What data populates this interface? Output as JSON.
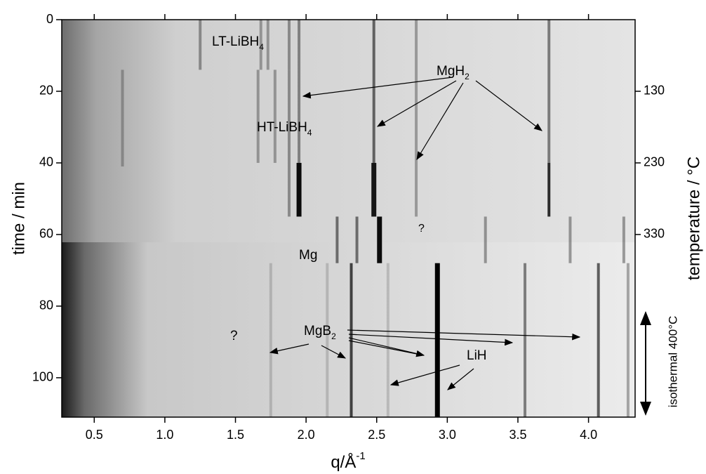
{
  "chart_data": {
    "type": "diffraction-map",
    "xlabel": {
      "text": "q/Å",
      "sup": "-1"
    },
    "ylabel": "time / min",
    "y2label": "temperature / °C",
    "xlim": [
      0.27,
      4.33
    ],
    "xticks": [
      0.5,
      {
        "value": 1.0,
        "label": "1.0"
      },
      1.5,
      {
        "value": 2.0,
        "label": "2.0"
      },
      2.5,
      {
        "value": 3.0,
        "label": "3.0"
      },
      3.5,
      {
        "value": 4.0,
        "label": "4.0"
      }
    ],
    "ylim": [
      0,
      111
    ],
    "yticks": [
      0,
      20,
      40,
      60,
      80,
      100
    ],
    "y2lim": [
      30,
      585
    ],
    "y2ticks": [
      130,
      230,
      330
    ],
    "isothermal": {
      "text": "isothermal 400°C",
      "range": [
        74,
        111
      ]
    },
    "reflections": [
      {
        "q": 1.25,
        "t": [
          0,
          14
        ],
        "level": 0.35
      },
      {
        "q": 1.68,
        "t": [
          0,
          14
        ],
        "level": 0.3
      },
      {
        "q": 1.73,
        "t": [
          0,
          14
        ],
        "level": 0.3
      },
      {
        "q": 1.88,
        "t": [
          0,
          14
        ],
        "level": 0.35
      },
      {
        "q": 0.7,
        "t": [
          14,
          41
        ],
        "level": 0.25
      },
      {
        "q": 1.66,
        "t": [
          14,
          40
        ],
        "level": 0.3
      },
      {
        "q": 1.78,
        "t": [
          14,
          40
        ],
        "level": 0.3
      },
      {
        "q": 1.88,
        "t": [
          14,
          55
        ],
        "level": 0.35
      },
      {
        "q": 1.95,
        "t": [
          0,
          40
        ],
        "level": 0.4
      },
      {
        "q": 1.95,
        "t": [
          40,
          55
        ],
        "level": 0.95
      },
      {
        "q": 2.48,
        "t": [
          0,
          40
        ],
        "level": 0.55
      },
      {
        "q": 2.48,
        "t": [
          40,
          55
        ],
        "level": 0.9
      },
      {
        "q": 2.78,
        "t": [
          0,
          55
        ],
        "level": 0.3
      },
      {
        "q": 3.72,
        "t": [
          0,
          40
        ],
        "level": 0.45
      },
      {
        "q": 3.72,
        "t": [
          40,
          55
        ],
        "level": 0.8
      },
      {
        "q": 2.22,
        "t": [
          55,
          68
        ],
        "level": 0.5
      },
      {
        "q": 2.36,
        "t": [
          55,
          68
        ],
        "level": 0.5
      },
      {
        "q": 2.52,
        "t": [
          55,
          68
        ],
        "level": 0.95
      },
      {
        "q": 3.27,
        "t": [
          55,
          68
        ],
        "level": 0.35
      },
      {
        "q": 3.87,
        "t": [
          55,
          68
        ],
        "level": 0.35
      },
      {
        "q": 4.25,
        "t": [
          55,
          68
        ],
        "level": 0.35
      },
      {
        "q": 1.75,
        "t": [
          68,
          111
        ],
        "level": 0.15
      },
      {
        "q": 2.15,
        "t": [
          68,
          111
        ],
        "level": 0.15
      },
      {
        "q": 2.32,
        "t": [
          68,
          111
        ],
        "level": 0.7
      },
      {
        "q": 2.58,
        "t": [
          68,
          111
        ],
        "level": 0.15
      },
      {
        "q": 2.93,
        "t": [
          68,
          111
        ],
        "level": 1.0
      },
      {
        "q": 3.55,
        "t": [
          68,
          111
        ],
        "level": 0.45
      },
      {
        "q": 4.07,
        "t": [
          68,
          111
        ],
        "level": 0.6
      },
      {
        "q": 4.28,
        "t": [
          68,
          111
        ],
        "level": 0.3
      }
    ],
    "annotations": [
      {
        "text": "LT-LiBH",
        "sub": "4"
      },
      {
        "text": "MgH",
        "sub": "2"
      },
      {
        "text": "HT-LiBH",
        "sub": "4"
      },
      {
        "text": "Mg"
      },
      {
        "text": "?"
      },
      {
        "text": "MgB",
        "sub": "2"
      },
      {
        "text": "?"
      },
      {
        "text": "LiH"
      }
    ]
  }
}
